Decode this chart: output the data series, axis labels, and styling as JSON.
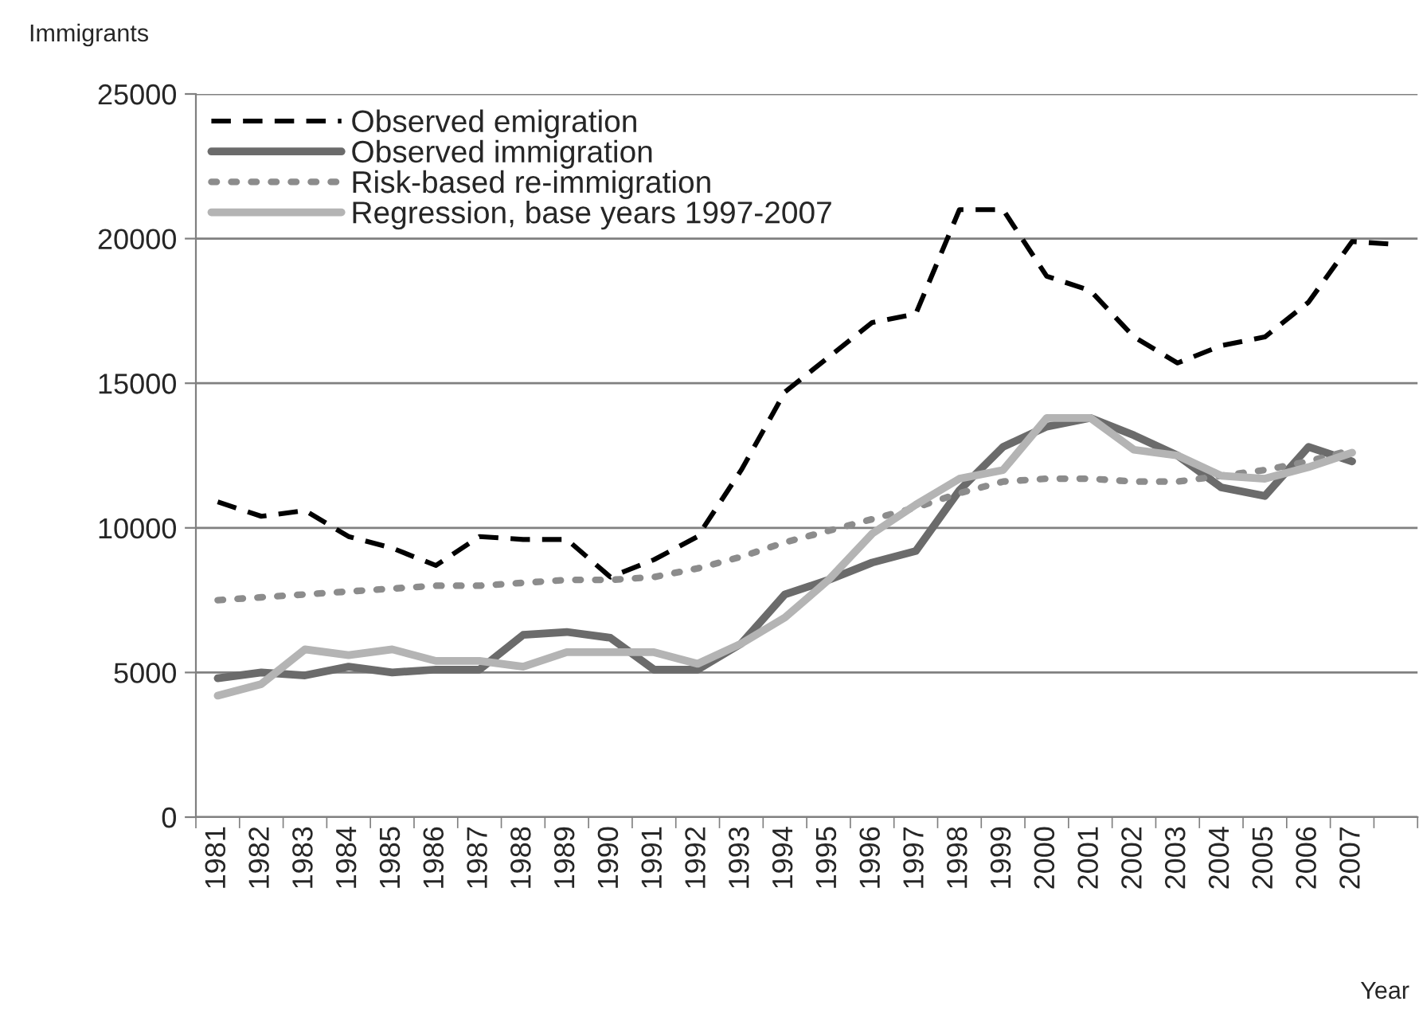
{
  "chart_data": {
    "type": "line",
    "ylabel": "Immigrants",
    "xlabel": "Year",
    "categories": [
      "1981",
      "1982",
      "1983",
      "1984",
      "1985",
      "1986",
      "1987",
      "1988",
      "1989",
      "1990",
      "1991",
      "1992",
      "1993",
      "1994",
      "1995",
      "1996",
      "1997",
      "1998",
      "1999",
      "2000",
      "2001",
      "2002",
      "2003",
      "2004",
      "2005",
      "2006",
      "2007",
      null
    ],
    "series": [
      {
        "name": "Observed emigration",
        "color": "#000000",
        "line_style": "dashed",
        "values": [
          10900,
          10400,
          10600,
          9700,
          9300,
          8700,
          9700,
          9600,
          9600,
          8300,
          8900,
          9700,
          12000,
          14700,
          15900,
          17100,
          17400,
          21000,
          21000,
          18700,
          18200,
          16600,
          15700,
          16300,
          16600,
          17800,
          19900,
          19800
        ]
      },
      {
        "name": "Observed immigration",
        "color": "#6b6b6b",
        "line_style": "solid",
        "values": [
          4800,
          5000,
          4900,
          5200,
          5000,
          5100,
          5100,
          6300,
          6400,
          6200,
          5100,
          5100,
          6000,
          7700,
          8200,
          8800,
          9200,
          11300,
          12800,
          13500,
          13800,
          13200,
          12500,
          11400,
          11100,
          12800,
          12300,
          null
        ]
      },
      {
        "name": "Risk-based re-immigration",
        "color": "#8c8c8c",
        "line_style": "dotted",
        "values": [
          7500,
          7600,
          7700,
          7800,
          7900,
          8000,
          8000,
          8100,
          8200,
          8200,
          8300,
          8600,
          9000,
          9500,
          9900,
          10300,
          10700,
          11200,
          11600,
          11700,
          11700,
          11600,
          11600,
          11800,
          12000,
          12300,
          12700,
          null
        ]
      },
      {
        "name": "Regression, base years 1997-2007",
        "color": "#b4b4b4",
        "line_style": "solid",
        "values": [
          4200,
          4600,
          5800,
          5600,
          5800,
          5400,
          5400,
          5200,
          5700,
          5700,
          5700,
          5300,
          6000,
          6900,
          8200,
          9800,
          10800,
          11700,
          12000,
          13800,
          13800,
          12700,
          12500,
          11800,
          11700,
          12100,
          12600,
          null
        ]
      }
    ],
    "ylim": [
      0,
      25000
    ],
    "yticks": [
      0,
      5000,
      10000,
      15000,
      20000,
      25000
    ],
    "grid": "y",
    "legend": "top left",
    "marker": "none"
  }
}
